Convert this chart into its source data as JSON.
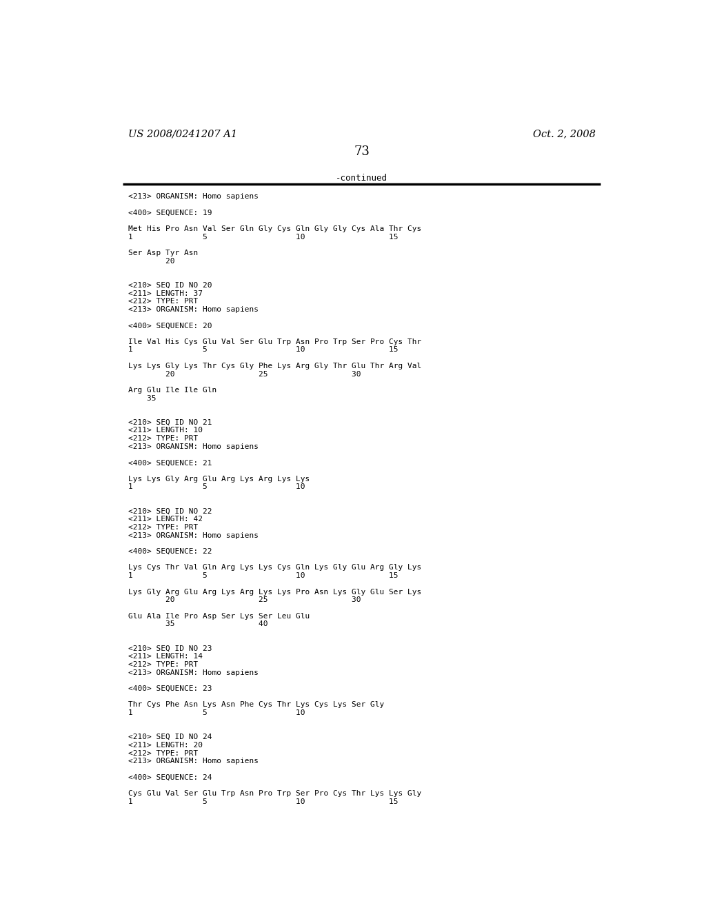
{
  "patent_number": "US 2008/0241207 A1",
  "date": "Oct. 2, 2008",
  "page_number": "73",
  "continued_label": "-continued",
  "background_color": "#ffffff",
  "text_color": "#000000",
  "content_lines": [
    "<213> ORGANISM: Homo sapiens",
    "",
    "<400> SEQUENCE: 19",
    "",
    "Met His Pro Asn Val Ser Gln Gly Cys Gln Gly Gly Cys Ala Thr Cys",
    "1               5                   10                  15",
    "",
    "Ser Asp Tyr Asn",
    "        20",
    "",
    "",
    "<210> SEQ ID NO 20",
    "<211> LENGTH: 37",
    "<212> TYPE: PRT",
    "<213> ORGANISM: Homo sapiens",
    "",
    "<400> SEQUENCE: 20",
    "",
    "Ile Val His Cys Glu Val Ser Glu Trp Asn Pro Trp Ser Pro Cys Thr",
    "1               5                   10                  15",
    "",
    "Lys Lys Gly Lys Thr Cys Gly Phe Lys Arg Gly Thr Glu Thr Arg Val",
    "        20                  25                  30",
    "",
    "Arg Glu Ile Ile Gln",
    "    35",
    "",
    "",
    "<210> SEQ ID NO 21",
    "<211> LENGTH: 10",
    "<212> TYPE: PRT",
    "<213> ORGANISM: Homo sapiens",
    "",
    "<400> SEQUENCE: 21",
    "",
    "Lys Lys Gly Arg Glu Arg Lys Arg Lys Lys",
    "1               5                   10",
    "",
    "",
    "<210> SEQ ID NO 22",
    "<211> LENGTH: 42",
    "<212> TYPE: PRT",
    "<213> ORGANISM: Homo sapiens",
    "",
    "<400> SEQUENCE: 22",
    "",
    "Lys Cys Thr Val Gln Arg Lys Lys Cys Gln Lys Gly Glu Arg Gly Lys",
    "1               5                   10                  15",
    "",
    "Lys Gly Arg Glu Arg Lys Arg Lys Lys Pro Asn Lys Gly Glu Ser Lys",
    "        20                  25                  30",
    "",
    "Glu Ala Ile Pro Asp Ser Lys Ser Leu Glu",
    "        35                  40",
    "",
    "",
    "<210> SEQ ID NO 23",
    "<211> LENGTH: 14",
    "<212> TYPE: PRT",
    "<213> ORGANISM: Homo sapiens",
    "",
    "<400> SEQUENCE: 23",
    "",
    "Thr Cys Phe Asn Lys Asn Phe Cys Thr Lys Cys Lys Ser Gly",
    "1               5                   10",
    "",
    "",
    "<210> SEQ ID NO 24",
    "<211> LENGTH: 20",
    "<212> TYPE: PRT",
    "<213> ORGANISM: Homo sapiens",
    "",
    "<400> SEQUENCE: 24",
    "",
    "Cys Glu Val Ser Glu Trp Asn Pro Trp Ser Pro Cys Thr Lys Lys Gly",
    "1               5                   10                  15"
  ]
}
